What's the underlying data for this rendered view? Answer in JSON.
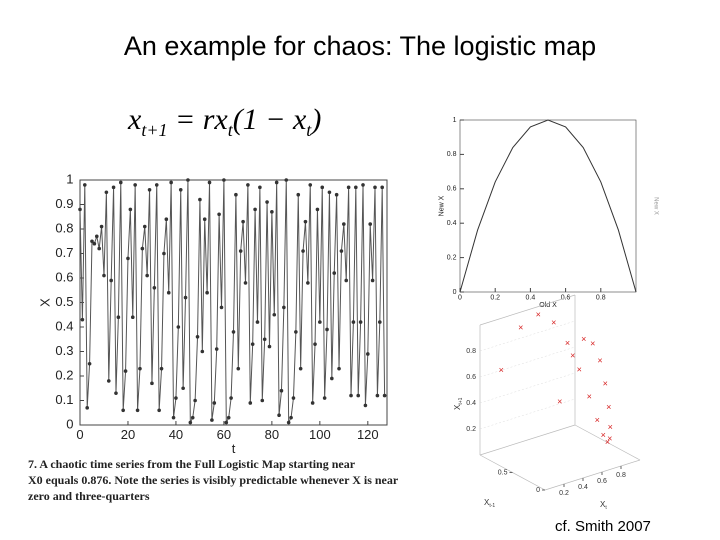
{
  "title": "An example for chaos: The logistic map",
  "equation": [
    "x",
    "t+1",
    " = rx",
    "t",
    "(1 − x",
    "t",
    ")"
  ],
  "caption": [
    "7.  A chaotic time series from the Full Logistic Map starting near",
    "X0 equals 0.876. Note the series is visibly predictable whenever X is near",
    "zero and three-quarters"
  ],
  "citation": "cf. Smith 2007",
  "chart_data": [
    {
      "type": "line",
      "markers": true,
      "color": "#555555",
      "xlabel": "t",
      "ylabel": "X",
      "x": [
        0,
        1,
        2,
        3,
        4,
        5,
        6,
        7,
        8,
        9,
        10,
        11,
        12,
        13,
        14,
        15,
        16,
        17,
        18,
        19,
        20,
        21,
        22,
        23,
        24,
        25,
        26,
        27,
        28,
        29,
        30,
        31,
        32,
        33,
        34,
        35,
        36,
        37,
        38,
        39,
        40,
        41,
        42,
        43,
        44,
        45,
        46,
        47,
        48,
        49,
        50,
        51,
        52,
        53,
        54,
        55,
        56,
        57,
        58,
        59,
        60,
        61,
        62,
        63,
        64,
        65,
        66,
        67,
        68,
        69,
        70,
        71,
        72,
        73,
        74,
        75,
        76,
        77,
        78,
        79,
        80,
        81,
        82,
        83,
        84,
        85,
        86,
        87,
        88,
        89,
        90,
        91,
        92,
        93,
        94,
        95,
        96,
        97,
        98,
        99,
        100,
        101,
        102,
        103,
        104,
        105,
        106,
        107,
        108,
        109,
        110,
        111,
        112,
        113,
        114,
        115,
        116,
        117,
        118,
        119,
        120,
        121,
        122,
        123,
        124,
        125,
        126,
        127
      ],
      "values": [
        0.88,
        0.43,
        0.98,
        0.07,
        0.25,
        0.75,
        0.74,
        0.77,
        0.72,
        0.81,
        0.61,
        0.95,
        0.18,
        0.59,
        0.97,
        0.13,
        0.44,
        0.99,
        0.06,
        0.22,
        0.68,
        0.88,
        0.44,
        0.98,
        0.06,
        0.23,
        0.72,
        0.81,
        0.61,
        0.96,
        0.17,
        0.56,
        0.98,
        0.06,
        0.23,
        0.7,
        0.84,
        0.54,
        0.99,
        0.03,
        0.11,
        0.4,
        0.96,
        0.15,
        0.52,
        1.0,
        0.01,
        0.03,
        0.1,
        0.36,
        0.92,
        0.3,
        0.84,
        0.54,
        0.99,
        0.02,
        0.09,
        0.31,
        0.86,
        0.48,
        1.0,
        0.01,
        0.03,
        0.11,
        0.38,
        0.94,
        0.23,
        0.71,
        0.83,
        0.58,
        0.98,
        0.09,
        0.33,
        0.88,
        0.42,
        0.97,
        0.1,
        0.35,
        0.91,
        0.32,
        0.87,
        0.45,
        0.99,
        0.04,
        0.14,
        0.48,
        1.0,
        0.01,
        0.03,
        0.11,
        0.38,
        0.94,
        0.23,
        0.71,
        0.83,
        0.58,
        0.98,
        0.09,
        0.33,
        0.88,
        0.42,
        0.97,
        0.11,
        0.39,
        0.95,
        0.19,
        0.62,
        0.94,
        0.23,
        0.71,
        0.82,
        0.59,
        0.97,
        0.12,
        0.42,
        0.97,
        0.12,
        0.42,
        0.98,
        0.08,
        0.29,
        0.82,
        0.59,
        0.97,
        0.12,
        0.42,
        0.97,
        0.12
      ],
      "xlim": [
        0,
        128
      ],
      "xticks": [
        0,
        20,
        40,
        60,
        80,
        100,
        120
      ],
      "ylim": [
        0,
        1
      ],
      "yticks": [
        0,
        0.1,
        0.2,
        0.3,
        0.4,
        0.5,
        0.6,
        0.7,
        0.8,
        0.9,
        1
      ]
    },
    {
      "type": "line",
      "markers": false,
      "color": "#333333",
      "xlabel": "Old X",
      "ylabel": "New X",
      "y2label": "New X",
      "x": [
        0,
        0.1,
        0.2,
        0.3,
        0.4,
        0.5,
        0.6,
        0.7,
        0.8,
        0.9,
        1
      ],
      "values": [
        0,
        0.36,
        0.64,
        0.84,
        0.96,
        1,
        0.96,
        0.84,
        0.64,
        0.36,
        0
      ],
      "xlim": [
        0,
        1
      ],
      "xticks": [
        0,
        0.2,
        0.4,
        0.6,
        0.8
      ],
      "ylim": [
        0,
        1
      ],
      "yticks": [
        0,
        0.2,
        0.4,
        0.6,
        0.8,
        1
      ]
    },
    {
      "type": "scatter3d",
      "color": "#d62020",
      "xlabel": "X",
      "xlabel_sub": "t-1",
      "ylabel": "X",
      "ylabel_sub": "t",
      "zlabel": "X",
      "zlabel_sub": "t+1",
      "x": [
        0.05,
        0.1,
        0.15,
        0.2,
        0.25,
        0.3,
        0.35,
        0.4,
        0.45,
        0.5,
        0.55,
        0.6,
        0.65,
        0.7,
        0.75,
        0.8,
        0.85,
        0.9,
        0.95
      ],
      "y": [
        0.19,
        0.36,
        0.51,
        0.64,
        0.75,
        0.84,
        0.91,
        0.96,
        0.99,
        1.0,
        0.99,
        0.96,
        0.91,
        0.84,
        0.75,
        0.64,
        0.51,
        0.36,
        0.19
      ],
      "z": [
        0.62,
        0.92,
        1.0,
        0.92,
        0.75,
        0.54,
        0.33,
        0.15,
        0.04,
        0.0,
        0.04,
        0.15,
        0.33,
        0.54,
        0.75,
        0.92,
        1.0,
        0.92,
        0.62
      ],
      "xticks": [
        0,
        0.5
      ],
      "yticks": [
        0.2,
        0.4,
        0.6,
        0.8
      ],
      "zticks": [
        0.2,
        0.4,
        0.6,
        0.8
      ]
    }
  ]
}
